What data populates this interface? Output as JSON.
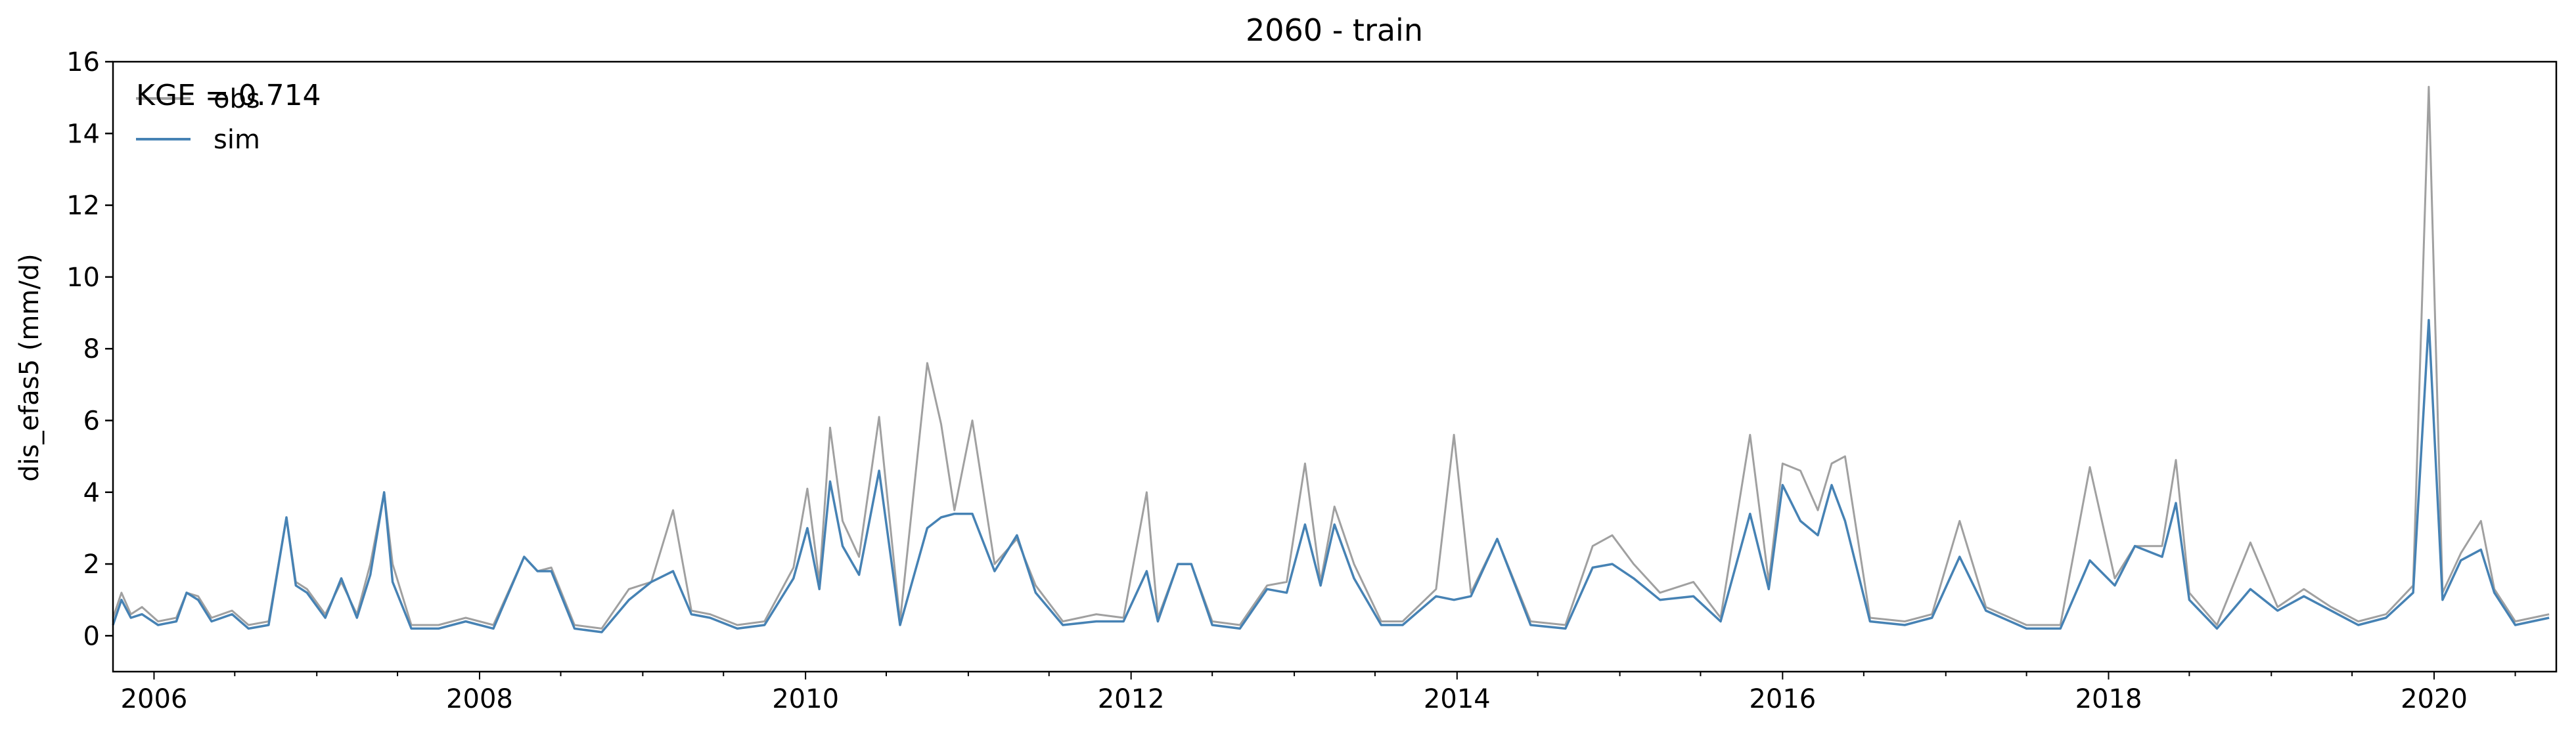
{
  "chart_data": {
    "type": "line",
    "title": "2060 - train",
    "ylabel": "dis_efas5 (mm/d)",
    "xlabel": "",
    "ylim": [
      -1,
      16
    ],
    "xlim": [
      "2005-10-01",
      "2020-10-01"
    ],
    "x_ticks": [
      "2006",
      "2008",
      "2010",
      "2012",
      "2014",
      "2016",
      "2018",
      "2020"
    ],
    "y_ticks": [
      0,
      2,
      4,
      6,
      8,
      10,
      12,
      14,
      16
    ],
    "grid": false,
    "legend": "top-left",
    "annotation": "KGE = 0.714",
    "series": [
      {
        "name": "obs",
        "color": "#a0a0a0",
        "points": [
          [
            "2005-10-01",
            0.5
          ],
          [
            "2005-10-20",
            1.2
          ],
          [
            "2005-11-10",
            0.6
          ],
          [
            "2005-12-05",
            0.8
          ],
          [
            "2006-01-10",
            0.4
          ],
          [
            "2006-02-20",
            0.5
          ],
          [
            "2006-03-15",
            1.2
          ],
          [
            "2006-04-10",
            1.1
          ],
          [
            "2006-05-10",
            0.5
          ],
          [
            "2006-06-25",
            0.7
          ],
          [
            "2006-08-01",
            0.3
          ],
          [
            "2006-09-15",
            0.4
          ],
          [
            "2006-10-25",
            3.3
          ],
          [
            "2006-11-15",
            1.5
          ],
          [
            "2006-12-10",
            1.3
          ],
          [
            "2007-01-20",
            0.6
          ],
          [
            "2007-02-25",
            1.5
          ],
          [
            "2007-04-01",
            0.6
          ],
          [
            "2007-05-01",
            2.0
          ],
          [
            "2007-06-01",
            4.0
          ],
          [
            "2007-06-20",
            2.0
          ],
          [
            "2007-08-01",
            0.3
          ],
          [
            "2007-10-01",
            0.3
          ],
          [
            "2007-12-01",
            0.5
          ],
          [
            "2008-02-01",
            0.3
          ],
          [
            "2008-04-10",
            2.2
          ],
          [
            "2008-05-10",
            1.8
          ],
          [
            "2008-06-10",
            1.9
          ],
          [
            "2008-08-01",
            0.3
          ],
          [
            "2008-10-01",
            0.2
          ],
          [
            "2008-12-01",
            1.3
          ],
          [
            "2009-01-20",
            1.5
          ],
          [
            "2009-03-10",
            3.5
          ],
          [
            "2009-04-20",
            0.7
          ],
          [
            "2009-06-01",
            0.6
          ],
          [
            "2009-08-01",
            0.3
          ],
          [
            "2009-10-01",
            0.4
          ],
          [
            "2009-12-05",
            1.9
          ],
          [
            "2010-01-05",
            4.1
          ],
          [
            "2010-02-01",
            1.5
          ],
          [
            "2010-02-25",
            5.8
          ],
          [
            "2010-03-25",
            3.2
          ],
          [
            "2010-05-01",
            2.2
          ],
          [
            "2010-06-15",
            6.1
          ],
          [
            "2010-08-01",
            0.4
          ],
          [
            "2010-10-01",
            7.6
          ],
          [
            "2010-11-01",
            5.9
          ],
          [
            "2010-12-01",
            3.5
          ],
          [
            "2011-01-10",
            6.0
          ],
          [
            "2011-03-01",
            2.0
          ],
          [
            "2011-04-20",
            2.7
          ],
          [
            "2011-06-01",
            1.4
          ],
          [
            "2011-08-01",
            0.4
          ],
          [
            "2011-10-15",
            0.6
          ],
          [
            "2011-12-15",
            0.5
          ],
          [
            "2012-02-05",
            4.0
          ],
          [
            "2012-03-01",
            0.5
          ],
          [
            "2012-04-15",
            2.0
          ],
          [
            "2012-05-15",
            2.0
          ],
          [
            "2012-07-01",
            0.4
          ],
          [
            "2012-09-01",
            0.3
          ],
          [
            "2012-11-01",
            1.4
          ],
          [
            "2012-12-15",
            1.5
          ],
          [
            "2013-01-25",
            4.8
          ],
          [
            "2013-03-01",
            1.5
          ],
          [
            "2013-04-01",
            3.6
          ],
          [
            "2013-05-15",
            2.0
          ],
          [
            "2013-07-15",
            0.4
          ],
          [
            "2013-09-01",
            0.4
          ],
          [
            "2013-11-15",
            1.3
          ],
          [
            "2013-12-25",
            5.6
          ],
          [
            "2014-02-01",
            1.2
          ],
          [
            "2014-04-01",
            2.7
          ],
          [
            "2014-06-15",
            0.4
          ],
          [
            "2014-09-01",
            0.3
          ],
          [
            "2014-11-01",
            2.5
          ],
          [
            "2014-12-15",
            2.8
          ],
          [
            "2015-02-01",
            2.0
          ],
          [
            "2015-04-01",
            1.2
          ],
          [
            "2015-06-15",
            1.5
          ],
          [
            "2015-08-15",
            0.5
          ],
          [
            "2015-10-20",
            5.6
          ],
          [
            "2015-12-01",
            1.5
          ],
          [
            "2016-01-01",
            4.8
          ],
          [
            "2016-02-10",
            4.6
          ],
          [
            "2016-03-20",
            3.5
          ],
          [
            "2016-04-20",
            4.8
          ],
          [
            "2016-05-20",
            5.0
          ],
          [
            "2016-07-15",
            0.5
          ],
          [
            "2016-10-01",
            0.4
          ],
          [
            "2016-12-01",
            0.6
          ],
          [
            "2017-02-01",
            3.2
          ],
          [
            "2017-04-01",
            0.8
          ],
          [
            "2017-07-01",
            0.3
          ],
          [
            "2017-09-15",
            0.3
          ],
          [
            "2017-11-20",
            4.7
          ],
          [
            "2018-01-15",
            1.6
          ],
          [
            "2018-03-01",
            2.5
          ],
          [
            "2018-05-01",
            2.5
          ],
          [
            "2018-06-01",
            4.9
          ],
          [
            "2018-07-01",
            1.2
          ],
          [
            "2018-09-01",
            0.3
          ],
          [
            "2018-11-15",
            2.6
          ],
          [
            "2019-01-15",
            0.8
          ],
          [
            "2019-03-15",
            1.3
          ],
          [
            "2019-05-15",
            0.8
          ],
          [
            "2019-07-15",
            0.4
          ],
          [
            "2019-09-15",
            0.6
          ],
          [
            "2019-11-15",
            1.4
          ],
          [
            "2019-12-20",
            15.3
          ],
          [
            "2020-01-20",
            1.2
          ],
          [
            "2020-03-01",
            2.3
          ],
          [
            "2020-04-15",
            3.2
          ],
          [
            "2020-05-15",
            1.3
          ],
          [
            "2020-07-01",
            0.4
          ],
          [
            "2020-09-15",
            0.6
          ]
        ]
      },
      {
        "name": "sim",
        "color": "#4682b4",
        "points": [
          [
            "2005-10-01",
            0.3
          ],
          [
            "2005-10-20",
            1.0
          ],
          [
            "2005-11-10",
            0.5
          ],
          [
            "2005-12-05",
            0.6
          ],
          [
            "2006-01-10",
            0.3
          ],
          [
            "2006-02-20",
            0.4
          ],
          [
            "2006-03-15",
            1.2
          ],
          [
            "2006-04-10",
            1.0
          ],
          [
            "2006-05-10",
            0.4
          ],
          [
            "2006-06-25",
            0.6
          ],
          [
            "2006-08-01",
            0.2
          ],
          [
            "2006-09-15",
            0.3
          ],
          [
            "2006-10-25",
            3.3
          ],
          [
            "2006-11-15",
            1.4
          ],
          [
            "2006-12-10",
            1.2
          ],
          [
            "2007-01-20",
            0.5
          ],
          [
            "2007-02-25",
            1.6
          ],
          [
            "2007-04-01",
            0.5
          ],
          [
            "2007-05-01",
            1.7
          ],
          [
            "2007-06-01",
            4.0
          ],
          [
            "2007-06-20",
            1.5
          ],
          [
            "2007-08-01",
            0.2
          ],
          [
            "2007-10-01",
            0.2
          ],
          [
            "2007-12-01",
            0.4
          ],
          [
            "2008-02-01",
            0.2
          ],
          [
            "2008-04-10",
            2.2
          ],
          [
            "2008-05-10",
            1.8
          ],
          [
            "2008-06-10",
            1.8
          ],
          [
            "2008-08-01",
            0.2
          ],
          [
            "2008-10-01",
            0.1
          ],
          [
            "2008-12-01",
            1.0
          ],
          [
            "2009-01-20",
            1.5
          ],
          [
            "2009-03-10",
            1.8
          ],
          [
            "2009-04-20",
            0.6
          ],
          [
            "2009-06-01",
            0.5
          ],
          [
            "2009-08-01",
            0.2
          ],
          [
            "2009-10-01",
            0.3
          ],
          [
            "2009-12-05",
            1.6
          ],
          [
            "2010-01-05",
            3.0
          ],
          [
            "2010-02-01",
            1.3
          ],
          [
            "2010-02-25",
            4.3
          ],
          [
            "2010-03-25",
            2.5
          ],
          [
            "2010-05-01",
            1.7
          ],
          [
            "2010-06-15",
            4.6
          ],
          [
            "2010-08-01",
            0.3
          ],
          [
            "2010-10-01",
            3.0
          ],
          [
            "2010-11-01",
            3.3
          ],
          [
            "2010-12-01",
            3.4
          ],
          [
            "2011-01-10",
            3.4
          ],
          [
            "2011-03-01",
            1.8
          ],
          [
            "2011-04-20",
            2.8
          ],
          [
            "2011-06-01",
            1.2
          ],
          [
            "2011-08-01",
            0.3
          ],
          [
            "2011-10-15",
            0.4
          ],
          [
            "2011-12-15",
            0.4
          ],
          [
            "2012-02-05",
            1.8
          ],
          [
            "2012-03-01",
            0.4
          ],
          [
            "2012-04-15",
            2.0
          ],
          [
            "2012-05-15",
            2.0
          ],
          [
            "2012-07-01",
            0.3
          ],
          [
            "2012-09-01",
            0.2
          ],
          [
            "2012-11-01",
            1.3
          ],
          [
            "2012-12-15",
            1.2
          ],
          [
            "2013-01-25",
            3.1
          ],
          [
            "2013-03-01",
            1.4
          ],
          [
            "2013-04-01",
            3.1
          ],
          [
            "2013-05-15",
            1.6
          ],
          [
            "2013-07-15",
            0.3
          ],
          [
            "2013-09-01",
            0.3
          ],
          [
            "2013-11-15",
            1.1
          ],
          [
            "2013-12-25",
            1.0
          ],
          [
            "2014-02-01",
            1.1
          ],
          [
            "2014-04-01",
            2.7
          ],
          [
            "2014-06-15",
            0.3
          ],
          [
            "2014-09-01",
            0.2
          ],
          [
            "2014-11-01",
            1.9
          ],
          [
            "2014-12-15",
            2.0
          ],
          [
            "2015-02-01",
            1.6
          ],
          [
            "2015-04-01",
            1.0
          ],
          [
            "2015-06-15",
            1.1
          ],
          [
            "2015-08-15",
            0.4
          ],
          [
            "2015-10-20",
            3.4
          ],
          [
            "2015-12-01",
            1.3
          ],
          [
            "2016-01-01",
            4.2
          ],
          [
            "2016-02-10",
            3.2
          ],
          [
            "2016-03-20",
            2.8
          ],
          [
            "2016-04-20",
            4.2
          ],
          [
            "2016-05-20",
            3.2
          ],
          [
            "2016-07-15",
            0.4
          ],
          [
            "2016-10-01",
            0.3
          ],
          [
            "2016-12-01",
            0.5
          ],
          [
            "2017-02-01",
            2.2
          ],
          [
            "2017-04-01",
            0.7
          ],
          [
            "2017-07-01",
            0.2
          ],
          [
            "2017-09-15",
            0.2
          ],
          [
            "2017-11-20",
            2.1
          ],
          [
            "2018-01-15",
            1.4
          ],
          [
            "2018-03-01",
            2.5
          ],
          [
            "2018-05-01",
            2.2
          ],
          [
            "2018-06-01",
            3.7
          ],
          [
            "2018-07-01",
            1.0
          ],
          [
            "2018-09-01",
            0.2
          ],
          [
            "2018-11-15",
            1.3
          ],
          [
            "2019-01-15",
            0.7
          ],
          [
            "2019-03-15",
            1.1
          ],
          [
            "2019-05-15",
            0.7
          ],
          [
            "2019-07-15",
            0.3
          ],
          [
            "2019-09-15",
            0.5
          ],
          [
            "2019-11-15",
            1.2
          ],
          [
            "2019-12-20",
            8.8
          ],
          [
            "2020-01-20",
            1.0
          ],
          [
            "2020-03-01",
            2.1
          ],
          [
            "2020-04-15",
            2.4
          ],
          [
            "2020-05-15",
            1.2
          ],
          [
            "2020-07-01",
            0.3
          ],
          [
            "2020-09-15",
            0.5
          ]
        ]
      }
    ]
  }
}
